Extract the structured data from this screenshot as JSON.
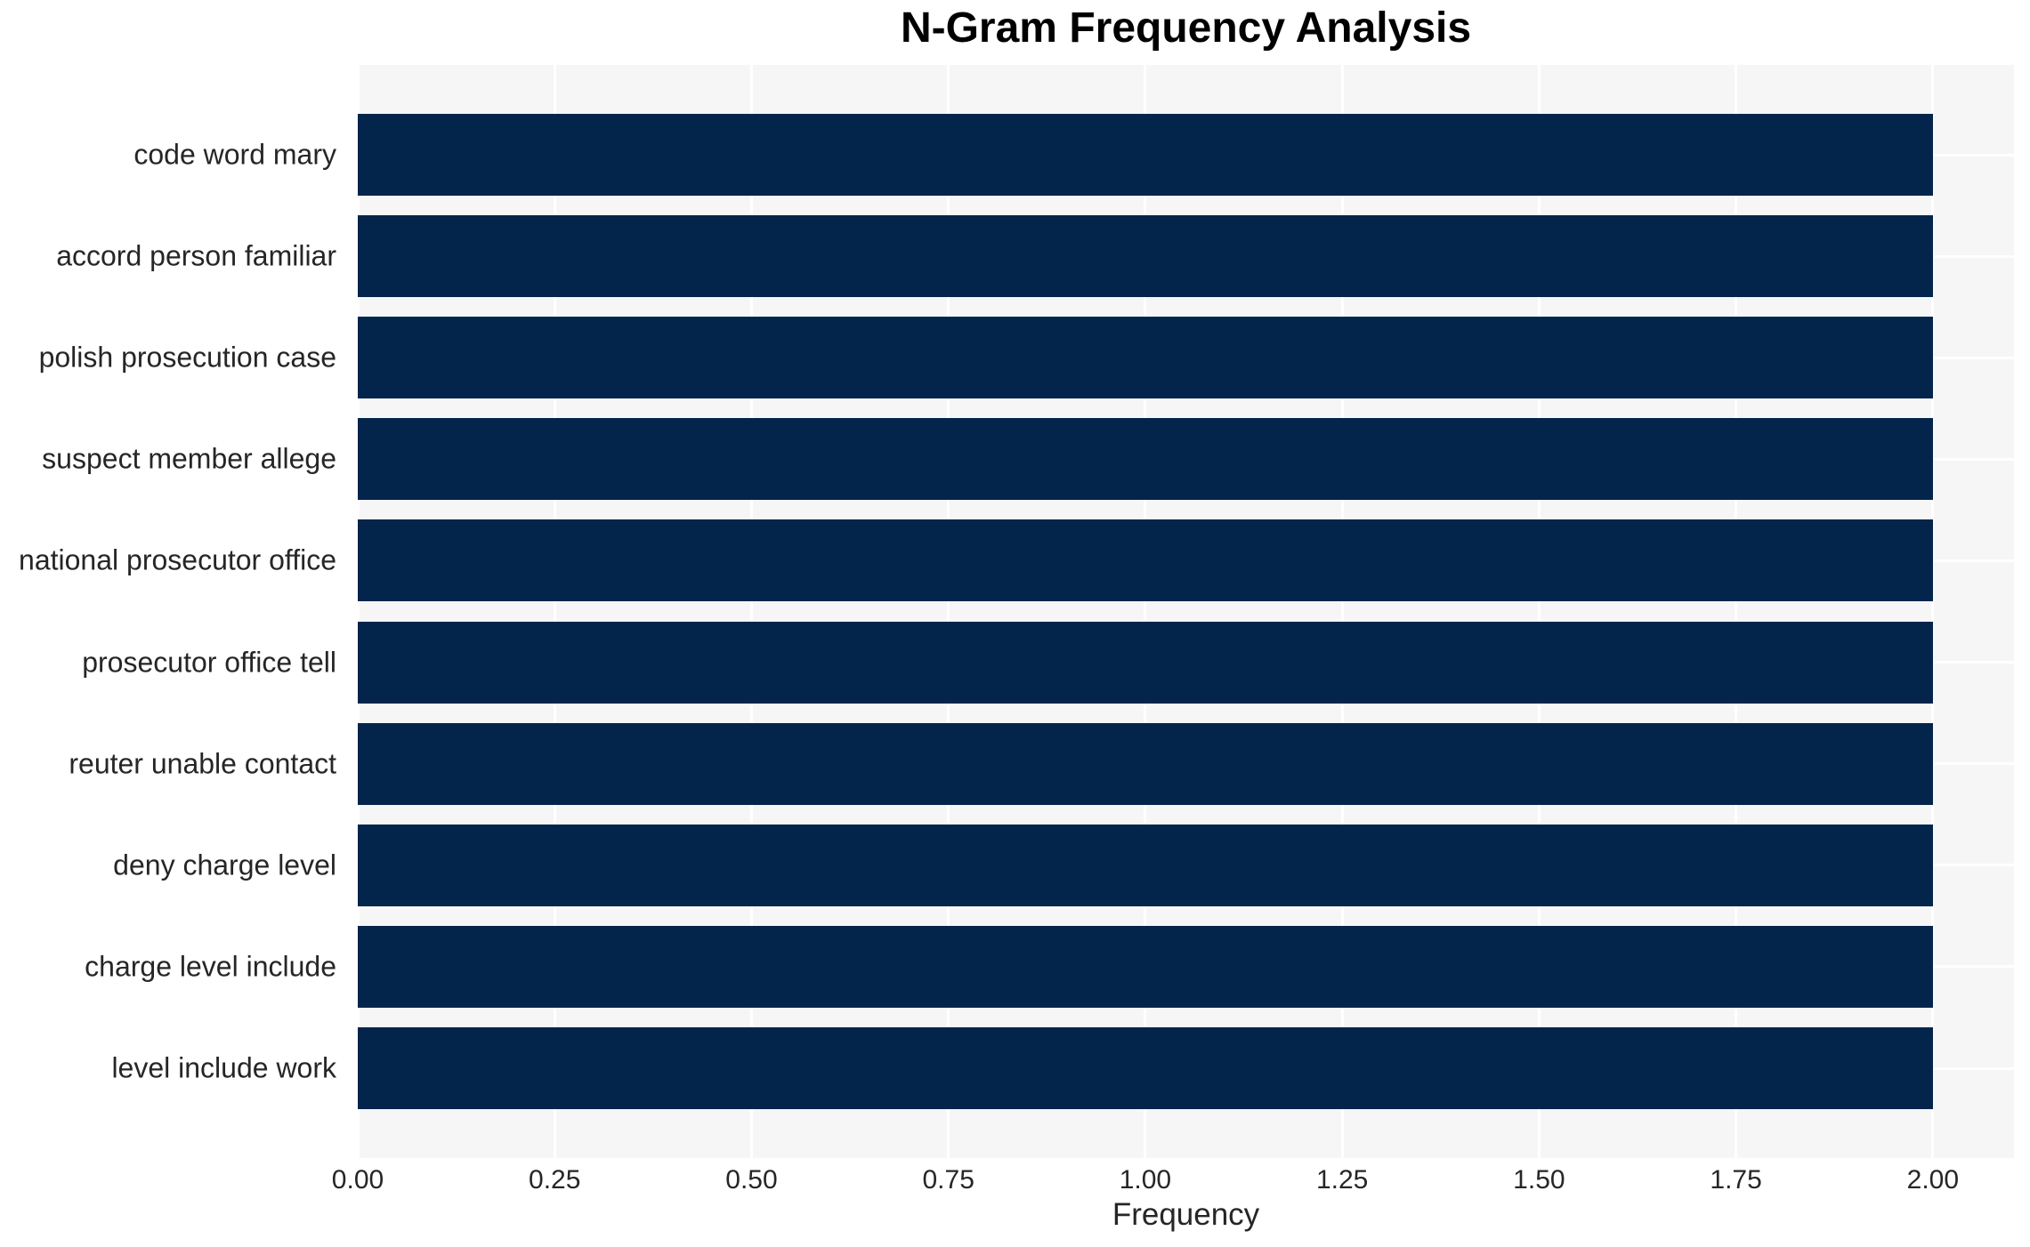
{
  "chart_data": {
    "type": "bar",
    "orientation": "horizontal",
    "title": "N-Gram Frequency Analysis",
    "xlabel": "Frequency",
    "ylabel": "",
    "categories": [
      "code word mary",
      "accord person familiar",
      "polish prosecution case",
      "suspect member allege",
      "national prosecutor office",
      "prosecutor office tell",
      "reuter unable contact",
      "deny charge level",
      "charge level include",
      "level include work"
    ],
    "values": [
      2.0,
      2.0,
      2.0,
      2.0,
      2.0,
      2.0,
      2.0,
      2.0,
      2.0,
      2.0
    ],
    "xlim": [
      0,
      2.103
    ],
    "xticks": [
      {
        "value": 0.0,
        "label": "0.00"
      },
      {
        "value": 0.25,
        "label": "0.25"
      },
      {
        "value": 0.5,
        "label": "0.50"
      },
      {
        "value": 0.75,
        "label": "0.75"
      },
      {
        "value": 1.0,
        "label": "1.00"
      },
      {
        "value": 1.25,
        "label": "1.25"
      },
      {
        "value": 1.5,
        "label": "1.50"
      },
      {
        "value": 1.75,
        "label": "1.75"
      },
      {
        "value": 2.0,
        "label": "2.00"
      }
    ],
    "grid": true,
    "legend": false,
    "colors": {
      "bar": "#03254C",
      "plot_background": "#F6F6F7",
      "gridline": "#FFFFFF",
      "title_text": "#000000",
      "tick_text": "#262626"
    }
  }
}
